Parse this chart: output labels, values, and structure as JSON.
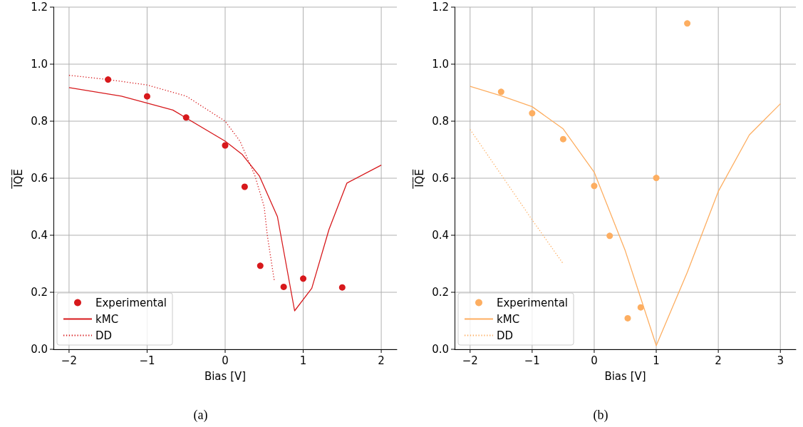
{
  "chart_data": [
    {
      "type": "line",
      "xlabel": "Bias [V]",
      "ylabel": "I̅Q̅E̅",
      "annotations": [
        "(a)"
      ],
      "xlim": [
        -2.2,
        2.2
      ],
      "ylim": [
        0,
        1.2
      ],
      "xticks": [
        -2,
        -1,
        0,
        1,
        2
      ],
      "yticks": [
        {
          "value": 0,
          "label": "0.0"
        },
        {
          "value": 0.2,
          "label": "0.2"
        },
        {
          "value": 0.4,
          "label": "0.4"
        },
        {
          "value": 0.6,
          "label": "0.6"
        },
        {
          "value": 0.8,
          "label": "0.8"
        },
        {
          "value": 1,
          "label": "1.0"
        },
        {
          "value": 1.2,
          "label": "1.2"
        }
      ],
      "grid": true,
      "legend": "bottom left",
      "series": [
        {
          "name": "Experimental",
          "type": "scatter",
          "marker": "circle",
          "color": "#d7191c",
          "x": [
            -1.5,
            -1,
            -0.5,
            0,
            0.25,
            0.45,
            0.75,
            1,
            1.5
          ],
          "values": [
            0.946,
            0.887,
            0.813,
            0.715,
            0.57,
            0.293,
            0.219,
            0.248,
            0.217
          ]
        },
        {
          "name": "kMC",
          "type": "line",
          "marker": "none",
          "line_style": "solid",
          "color": "#d7191c",
          "x": [
            -2,
            -1.33,
            -0.67,
            0,
            0.22,
            0.44,
            0.67,
            0.89,
            1.11,
            1.33,
            1.56,
            2
          ],
          "values": [
            0.918,
            0.888,
            0.839,
            0.73,
            0.683,
            0.607,
            0.465,
            0.135,
            0.214,
            0.42,
            0.583,
            0.646
          ]
        },
        {
          "name": "DD",
          "type": "line",
          "marker": "none",
          "line_style": "dotted",
          "color": "#d7191c",
          "x": [
            -2,
            -1.5,
            -1,
            -0.5,
            0,
            0.19,
            0.38,
            0.5,
            0.54,
            0.63
          ],
          "values": [
            0.961,
            0.946,
            0.927,
            0.888,
            0.8,
            0.73,
            0.61,
            0.5,
            0.4,
            0.24
          ]
        }
      ]
    },
    {
      "type": "line",
      "xlabel": "Bias [V]",
      "ylabel": "I̅Q̅E̅",
      "annotations": [
        "(b)"
      ],
      "xlim": [
        -2.25,
        3.25
      ],
      "ylim": [
        0,
        1.2
      ],
      "xticks": [
        -2,
        -1,
        0,
        1,
        2,
        3
      ],
      "yticks": [
        {
          "value": 0,
          "label": "0.0"
        },
        {
          "value": 0.2,
          "label": "0.2"
        },
        {
          "value": 0.4,
          "label": "0.4"
        },
        {
          "value": 0.6,
          "label": "0.6"
        },
        {
          "value": 0.8,
          "label": "0.8"
        },
        {
          "value": 1,
          "label": "1.0"
        },
        {
          "value": 1.2,
          "label": "1.2"
        }
      ],
      "grid": true,
      "legend": "bottom left",
      "series": [
        {
          "name": "Experimental",
          "type": "scatter",
          "marker": "circle",
          "color": "#fdae61",
          "x": [
            -1.5,
            -1,
            -0.5,
            0,
            0.25,
            0.54,
            0.75,
            1,
            1.5
          ],
          "values": [
            0.903,
            0.828,
            0.737,
            0.573,
            0.398,
            0.109,
            0.147,
            0.601,
            1.143
          ]
        },
        {
          "name": "kMC",
          "type": "line",
          "marker": "none",
          "line_style": "solid",
          "color": "#fdae61",
          "x": [
            -2,
            -1.5,
            -1,
            -0.5,
            0,
            0.5,
            1,
            1.5,
            2,
            2.5,
            3
          ],
          "values": [
            0.922,
            0.889,
            0.851,
            0.773,
            0.621,
            0.346,
            0.013,
            0.27,
            0.554,
            0.752,
            0.861
          ]
        },
        {
          "name": "DD",
          "type": "line",
          "marker": "none",
          "line_style": "dotted",
          "color": "#fdae61",
          "x": [
            -2,
            -1,
            -0.5
          ],
          "values": [
            0.771,
            0.454,
            0.3
          ]
        }
      ]
    }
  ]
}
